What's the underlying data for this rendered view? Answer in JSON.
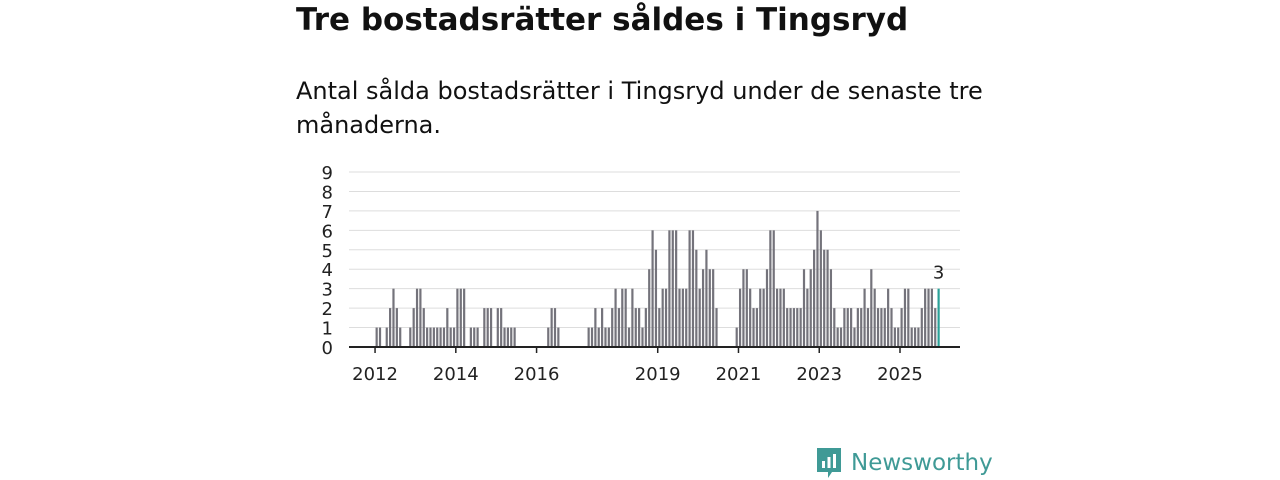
{
  "title": "Tre bostadsrätter såldes i Tingsryd",
  "subtitle": "Antal sålda bostadsrätter i Tingsryd under de senaste tre månaderna.",
  "brand": {
    "name": "Newsworthy",
    "icon": "newsworthy-chart-icon"
  },
  "colors": {
    "bar": "#74737b",
    "highlight": "#2aa198",
    "brand": "#3f9a96",
    "grid": "#dddddd"
  },
  "chart_data": {
    "type": "bar",
    "title": "Tre bostadsrätter såldes i Tingsryd",
    "subtitle": "Antal sålda bostadsrätter i Tingsryd under de senaste tre månaderna.",
    "xlabel": "",
    "ylabel": "",
    "ylim": [
      0,
      9
    ],
    "yticks": [
      0,
      1,
      2,
      3,
      4,
      5,
      6,
      7,
      8,
      9
    ],
    "grid": true,
    "start": "2011-06",
    "frequency": "monthly",
    "xticks": [
      "2012",
      "2014",
      "2016",
      "2019",
      "2021",
      "2023",
      "2025"
    ],
    "annotation": {
      "label": "3",
      "target": "last"
    },
    "values": [
      0,
      0,
      0,
      0,
      0,
      0,
      0,
      1,
      1,
      0,
      1,
      2,
      3,
      2,
      1,
      0,
      0,
      1,
      2,
      3,
      3,
      2,
      1,
      1,
      1,
      1,
      1,
      1,
      2,
      1,
      1,
      3,
      3,
      3,
      0,
      1,
      1,
      1,
      0,
      2,
      2,
      2,
      0,
      2,
      2,
      1,
      1,
      1,
      1,
      0,
      0,
      0,
      0,
      0,
      0,
      0,
      0,
      0,
      1,
      2,
      2,
      1,
      0,
      0,
      0,
      0,
      0,
      0,
      0,
      0,
      1,
      1,
      2,
      1,
      2,
      1,
      1,
      2,
      3,
      2,
      3,
      3,
      1,
      3,
      2,
      2,
      1,
      2,
      4,
      6,
      5,
      2,
      3,
      3,
      6,
      6,
      6,
      3,
      3,
      3,
      6,
      6,
      5,
      3,
      4,
      5,
      4,
      4,
      2,
      0,
      0,
      0,
      0,
      0,
      1,
      3,
      4,
      4,
      3,
      2,
      2,
      3,
      3,
      4,
      6,
      6,
      3,
      3,
      3,
      2,
      2,
      2,
      2,
      2,
      4,
      3,
      4,
      5,
      7,
      6,
      5,
      5,
      4,
      2,
      1,
      1,
      2,
      2,
      2,
      1,
      2,
      2,
      3,
      2,
      4,
      3,
      2,
      2,
      2,
      3,
      2,
      1,
      1,
      2,
      3,
      3,
      1,
      1,
      1,
      2,
      3,
      3,
      3,
      2,
      3
    ]
  }
}
